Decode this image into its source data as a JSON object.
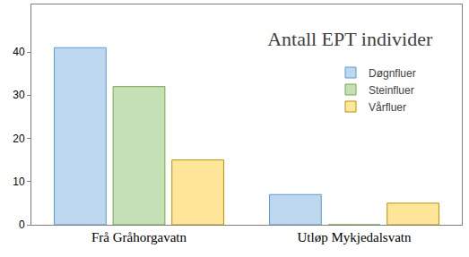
{
  "chart_data": {
    "type": "bar",
    "title": "Antall EPT individer",
    "categories": [
      "Frå Gråhorgavatn",
      "Utløp Mykjedalsvatn"
    ],
    "series": [
      {
        "name": "Døgnfluer",
        "color": "#bdd7ee",
        "values": [
          41,
          7
        ]
      },
      {
        "name": "Steinfluer",
        "color": "#c5e0b4",
        "values": [
          32,
          0
        ]
      },
      {
        "name": "Vårfluer",
        "color": "#ffe699",
        "values": [
          15,
          5
        ]
      }
    ],
    "ylim": [
      0,
      51
    ],
    "yticks": [
      0,
      10,
      20,
      30,
      40
    ],
    "grid": false,
    "legend": "right"
  }
}
